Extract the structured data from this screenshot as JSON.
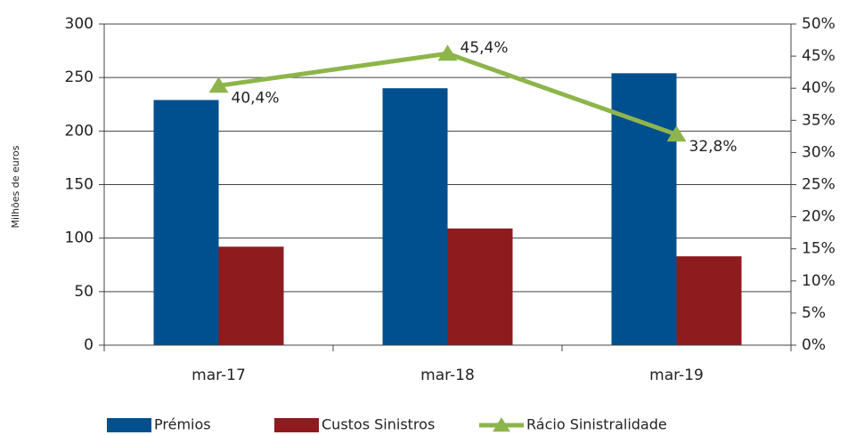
{
  "chart_data": {
    "type": "bar",
    "y_label": "Milhões de euros",
    "categories": [
      "mar-17",
      "mar-18",
      "mar-19"
    ],
    "series": [
      {
        "name": "Prémios",
        "type": "bar",
        "color": "#004f8f",
        "values": [
          229,
          240,
          254
        ]
      },
      {
        "name": "Custos Sinistros",
        "type": "bar",
        "color": "#8e1b1e",
        "values": [
          92,
          109,
          83
        ]
      },
      {
        "name": "Rácio Sinistralidade",
        "type": "line",
        "axis": "y2",
        "color": "#8db54b",
        "values": [
          40.4,
          45.4,
          32.8
        ],
        "value_labels": [
          "40,4%",
          "45,4%",
          "32,8%"
        ]
      }
    ],
    "ylim": [
      0,
      300
    ],
    "yticks": [
      0,
      50,
      100,
      150,
      200,
      250,
      300
    ],
    "y2lim": [
      0,
      50
    ],
    "y2ticks": [
      {
        "value": 0,
        "label": "0%"
      },
      {
        "value": 5,
        "label": "5%"
      },
      {
        "value": 10,
        "label": "10%"
      },
      {
        "value": 15,
        "label": "15%"
      },
      {
        "value": 20,
        "label": "20%"
      },
      {
        "value": 25,
        "label": "25%"
      },
      {
        "value": 30,
        "label": "30%"
      },
      {
        "value": 35,
        "label": "35%"
      },
      {
        "value": 40,
        "label": "40%"
      },
      {
        "value": 45,
        "label": "45%"
      },
      {
        "value": 50,
        "label": "50%"
      }
    ],
    "grid": true,
    "legend": "bottom"
  }
}
